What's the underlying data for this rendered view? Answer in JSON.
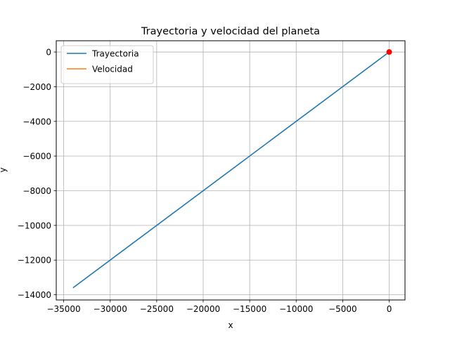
{
  "chart_data": {
    "type": "line",
    "title": "Trayectoria y velocidad del planeta",
    "xlabel": "x",
    "ylabel": "y",
    "xlim": [
      -35800,
      1700
    ],
    "ylim": [
      -14300,
      650
    ],
    "grid": true,
    "legend_position": "top-left",
    "xticks": [
      -35000,
      -30000,
      -25000,
      -20000,
      -15000,
      -10000,
      -5000,
      0
    ],
    "xtick_labels": [
      "−35000",
      "−30000",
      "−25000",
      "−20000",
      "−15000",
      "−10000",
      "−5000",
      "0"
    ],
    "yticks": [
      0,
      -2000,
      -4000,
      -6000,
      -8000,
      -10000,
      -12000,
      -14000
    ],
    "ytick_labels": [
      "0",
      "−2000",
      "−4000",
      "−6000",
      "−8000",
      "−10000",
      "−12000",
      "−14000"
    ],
    "series": [
      {
        "name": "Trayectoria",
        "color": "#1f77b4",
        "x": [
          -34000,
          0
        ],
        "y": [
          -13600,
          0
        ]
      },
      {
        "name": "Velocidad",
        "color": "#ff7f0e",
        "x": [
          0,
          0
        ],
        "y": [
          0,
          0
        ]
      }
    ],
    "markers": [
      {
        "x": 0,
        "y": 0,
        "color": "#ff0000"
      }
    ]
  }
}
